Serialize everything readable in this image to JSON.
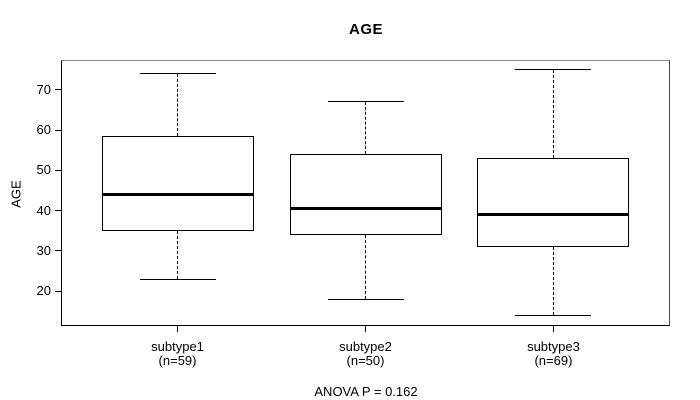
{
  "header": {
    "title": "AGE"
  },
  "chart_data": {
    "type": "boxplot",
    "title": "AGE",
    "xlabel": "",
    "ylabel": "AGE",
    "ylim": [
      11.6,
      77.4
    ],
    "yticks": [
      20,
      30,
      40,
      50,
      60,
      70
    ],
    "grid": false,
    "legend": "none",
    "groups": [
      {
        "label": "subtype1",
        "sublabel": "(n=59)",
        "n": 59,
        "whisker_low": 23,
        "q1": 35,
        "median": 44,
        "q3": 58.5,
        "whisker_high": 74
      },
      {
        "label": "subtype2",
        "sublabel": "(n=50)",
        "n": 50,
        "whisker_low": 18,
        "q1": 34,
        "median": 40.5,
        "q3": 54,
        "whisker_high": 67
      },
      {
        "label": "subtype3",
        "sublabel": "(n=69)",
        "n": 69,
        "whisker_low": 14,
        "q1": 31,
        "median": 39,
        "q3": 53,
        "whisker_high": 75
      }
    ],
    "annotation": "ANOVA P = 0.162",
    "colors": {
      "line": "#000000",
      "median": "#000000",
      "box_fill": "#ffffff",
      "background": "#ffffff",
      "frame_top": "#8c8c8c"
    }
  }
}
